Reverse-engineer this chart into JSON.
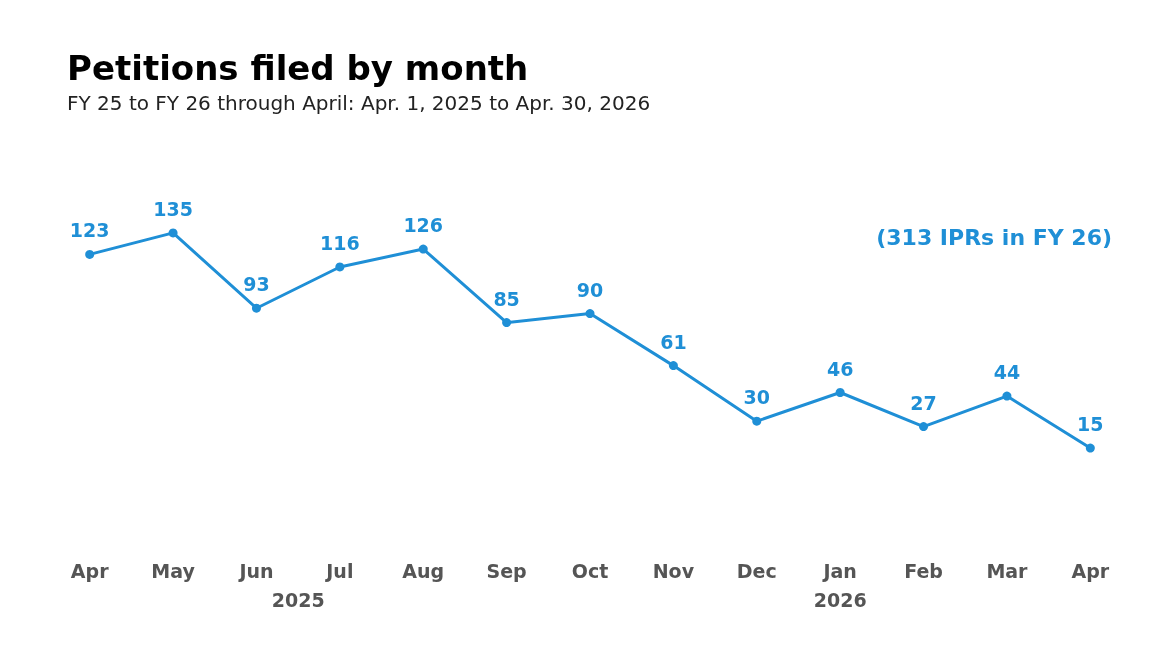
{
  "chart_data": {
    "type": "line",
    "title": "Petitions filed by month",
    "subtitle": "FY 25 to FY 26 through April: Apr. 1, 2025 to Apr. 30, 2026",
    "categories": [
      "Apr",
      "May",
      "Jun",
      "Jul",
      "Aug",
      "Sep",
      "Oct",
      "Nov",
      "Dec",
      "Jan",
      "Feb",
      "Mar",
      "Apr"
    ],
    "series": [
      {
        "color": "#1f8fd6",
        "values": [
          123,
          135,
          93,
          116,
          126,
          85,
          90,
          61,
          30,
          46,
          27,
          44,
          15
        ]
      }
    ],
    "data_labels": true,
    "marker": "circle",
    "line_style": "solid",
    "annotations": [
      "(313 IPRs in FY 26)",
      "2025",
      "2026"
    ]
  }
}
